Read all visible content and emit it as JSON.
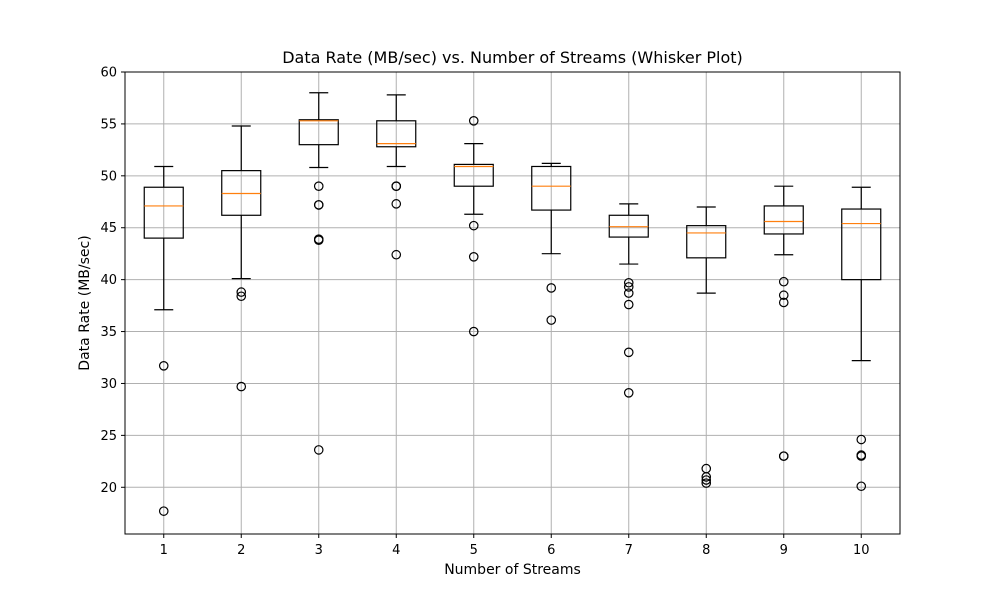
{
  "chart_data": {
    "type": "box",
    "title": "Data Rate (MB/sec) vs. Number of Streams (Whisker Plot)",
    "xlabel": "Number of Streams",
    "ylabel": "Data Rate (MB/sec)",
    "categories": [
      "1",
      "2",
      "3",
      "4",
      "5",
      "6",
      "7",
      "8",
      "9",
      "10"
    ],
    "ylim": [
      15.5,
      60
    ],
    "yticks": [
      20,
      25,
      30,
      35,
      40,
      45,
      50,
      55,
      60
    ],
    "grid": true,
    "colors": {
      "box": "#000000",
      "median": "#ff7f0e",
      "grid": "#b0b0b0"
    },
    "boxes": [
      {
        "whisker_low": 37.1,
        "q1": 44.0,
        "median": 47.1,
        "q3": 48.9,
        "whisker_high": 50.9,
        "outliers": [
          31.7,
          17.7
        ]
      },
      {
        "whisker_low": 40.1,
        "q1": 46.2,
        "median": 48.3,
        "q3": 50.5,
        "whisker_high": 54.8,
        "outliers": [
          38.8,
          38.4,
          29.7
        ]
      },
      {
        "whisker_low": 50.8,
        "q1": 53.0,
        "median": 55.3,
        "q3": 55.4,
        "whisker_high": 58.0,
        "outliers": [
          49.0,
          47.2,
          47.2,
          43.9,
          43.8,
          23.6
        ]
      },
      {
        "whisker_low": 50.9,
        "q1": 52.8,
        "median": 53.1,
        "q3": 55.3,
        "whisker_high": 57.8,
        "outliers": [
          49.0,
          49.0,
          47.3,
          42.4
        ]
      },
      {
        "whisker_low": 46.3,
        "q1": 49.0,
        "median": 50.9,
        "q3": 51.1,
        "whisker_high": 53.1,
        "outliers": [
          55.3,
          45.2,
          42.2,
          35.0
        ]
      },
      {
        "whisker_low": 42.5,
        "q1": 46.7,
        "median": 49.0,
        "q3": 50.9,
        "whisker_high": 51.2,
        "outliers": [
          39.2,
          36.1
        ]
      },
      {
        "whisker_low": 41.5,
        "q1": 44.1,
        "median": 45.1,
        "q3": 46.2,
        "whisker_high": 47.3,
        "outliers": [
          39.7,
          39.3,
          38.7,
          37.6,
          33.0,
          29.1
        ]
      },
      {
        "whisker_low": 38.7,
        "q1": 42.1,
        "median": 44.5,
        "q3": 45.2,
        "whisker_high": 47.0,
        "outliers": [
          21.8,
          21.0,
          20.7,
          20.4
        ]
      },
      {
        "whisker_low": 42.4,
        "q1": 44.4,
        "median": 45.6,
        "q3": 47.1,
        "whisker_high": 49.0,
        "outliers": [
          39.8,
          38.5,
          37.8,
          23.0,
          23.0
        ]
      },
      {
        "whisker_low": 32.2,
        "q1": 40.0,
        "median": 45.4,
        "q3": 46.8,
        "whisker_high": 48.9,
        "outliers": [
          24.6,
          23.1,
          23.0,
          20.1
        ]
      }
    ]
  }
}
